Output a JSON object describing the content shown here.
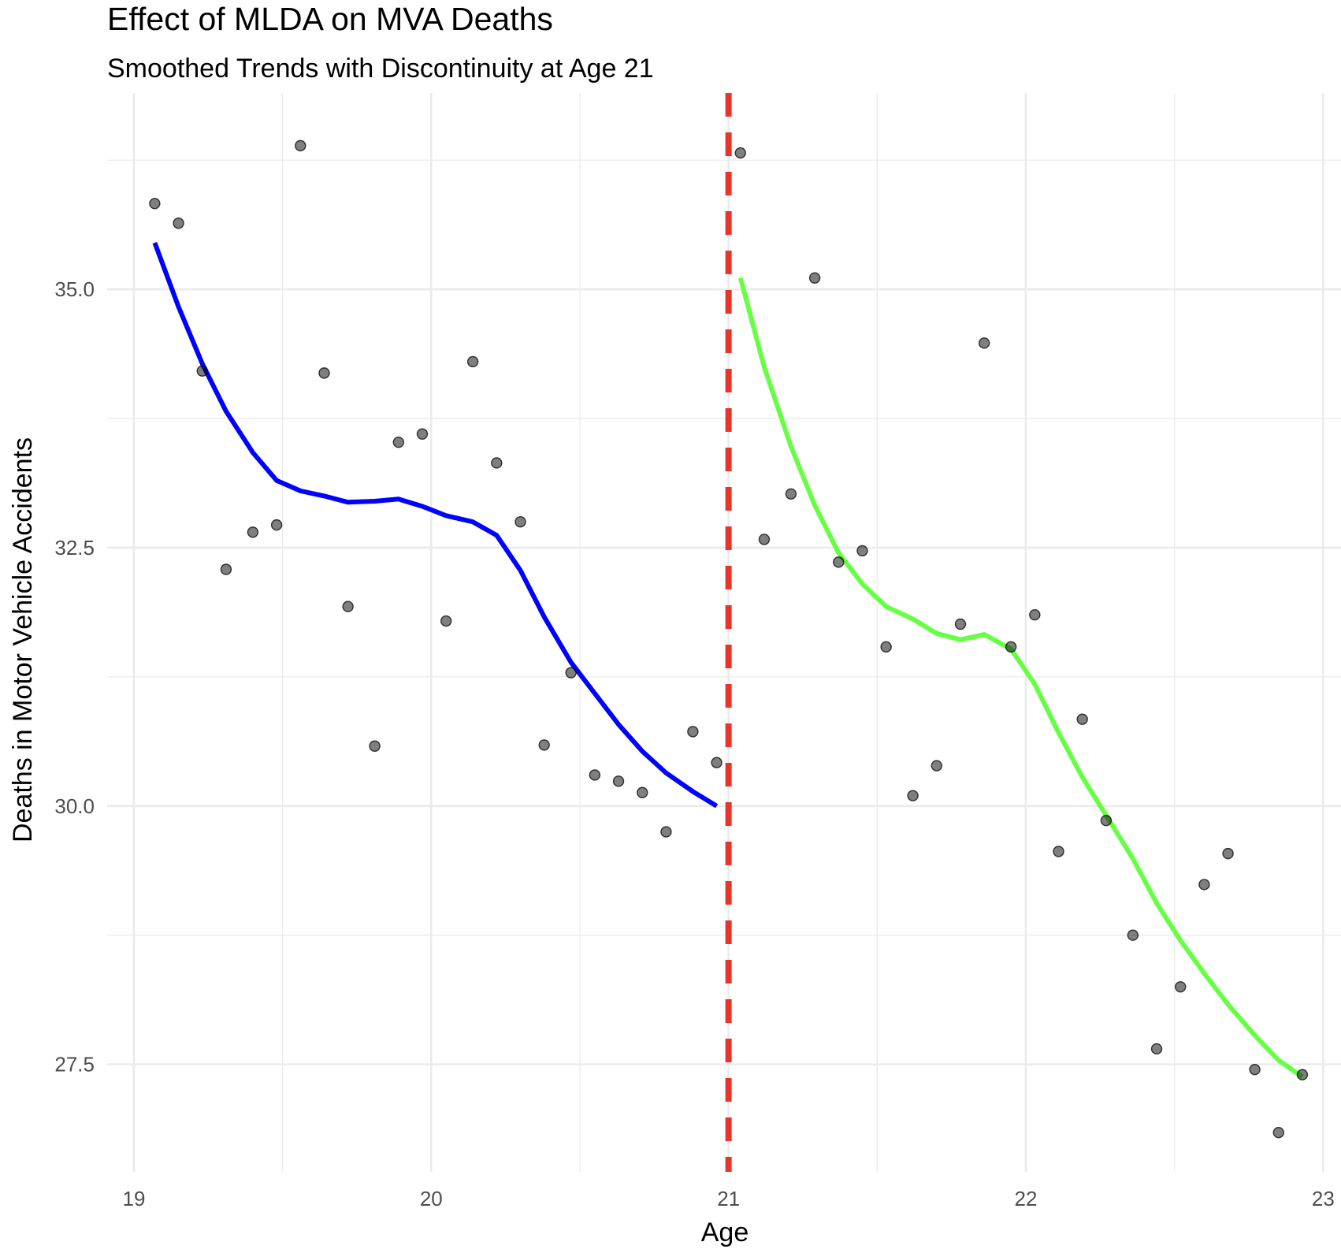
{
  "chart_data": {
    "type": "scatter",
    "title": "Effect of MLDA on MVA Deaths",
    "subtitle": "Smoothed Trends with Discontinuity at Age 21",
    "xlabel": "Age",
    "ylabel": "Deaths in Motor Vehicle Accidents",
    "xlim": [
      18.91,
      23.06
    ],
    "ylim": [
      26.46,
      36.9
    ],
    "x_ticks": [
      19,
      20,
      21,
      22,
      23
    ],
    "x_tick_labels": [
      "19",
      "20",
      "21",
      "22",
      "23"
    ],
    "y_ticks": [
      27.5,
      30.0,
      32.5,
      35.0
    ],
    "y_tick_labels": [
      "27.5",
      "30.0",
      "32.5",
      "35.0"
    ],
    "grid": true,
    "cutoff": {
      "x": 21,
      "color": "#e8352b",
      "style": "dashed"
    },
    "series": [
      {
        "kind": "points",
        "color": "#000000",
        "points": [
          [
            19.07,
            35.83
          ],
          [
            19.15,
            35.64
          ],
          [
            19.23,
            34.21
          ],
          [
            19.31,
            32.29
          ],
          [
            19.4,
            32.65
          ],
          [
            19.48,
            32.72
          ],
          [
            19.56,
            36.39
          ],
          [
            19.64,
            34.19
          ],
          [
            19.72,
            31.93
          ],
          [
            19.81,
            30.58
          ],
          [
            19.89,
            33.52
          ],
          [
            19.97,
            33.6
          ],
          [
            20.05,
            31.79
          ],
          [
            20.14,
            34.3
          ],
          [
            20.22,
            33.32
          ],
          [
            20.3,
            32.75
          ],
          [
            20.38,
            30.59
          ],
          [
            20.47,
            31.29
          ],
          [
            20.55,
            30.3
          ],
          [
            20.63,
            30.24
          ],
          [
            20.71,
            30.13
          ],
          [
            20.79,
            29.75
          ],
          [
            20.88,
            30.72
          ],
          [
            20.96,
            30.42
          ],
          [
            21.04,
            36.32
          ],
          [
            21.12,
            32.58
          ],
          [
            21.21,
            33.02
          ],
          [
            21.29,
            35.11
          ],
          [
            21.37,
            32.36
          ],
          [
            21.45,
            32.47
          ],
          [
            21.53,
            31.54
          ],
          [
            21.62,
            30.1
          ],
          [
            21.7,
            30.39
          ],
          [
            21.78,
            31.76
          ],
          [
            21.86,
            34.48
          ],
          [
            21.95,
            31.54
          ],
          [
            22.03,
            31.85
          ],
          [
            22.11,
            29.56
          ],
          [
            22.19,
            30.84
          ],
          [
            22.27,
            29.86
          ],
          [
            22.36,
            28.75
          ],
          [
            22.44,
            27.65
          ],
          [
            22.52,
            28.25
          ],
          [
            22.6,
            29.24
          ],
          [
            22.68,
            29.54
          ],
          [
            22.77,
            27.45
          ],
          [
            22.85,
            26.84
          ],
          [
            22.93,
            27.4
          ]
        ]
      },
      {
        "kind": "smooth",
        "color": "#0000ff",
        "points": [
          [
            19.07,
            35.45
          ],
          [
            19.15,
            34.83
          ],
          [
            19.23,
            34.28
          ],
          [
            19.31,
            33.82
          ],
          [
            19.4,
            33.42
          ],
          [
            19.48,
            33.15
          ],
          [
            19.56,
            33.05
          ],
          [
            19.64,
            33.0
          ],
          [
            19.72,
            32.94
          ],
          [
            19.81,
            32.95
          ],
          [
            19.89,
            32.97
          ],
          [
            19.97,
            32.9
          ],
          [
            20.05,
            32.81
          ],
          [
            20.14,
            32.75
          ],
          [
            20.22,
            32.62
          ],
          [
            20.3,
            32.28
          ],
          [
            20.38,
            31.83
          ],
          [
            20.47,
            31.39
          ],
          [
            20.55,
            31.09
          ],
          [
            20.63,
            30.79
          ],
          [
            20.71,
            30.53
          ],
          [
            20.79,
            30.32
          ],
          [
            20.88,
            30.14
          ],
          [
            20.96,
            30.0
          ]
        ]
      },
      {
        "kind": "smooth",
        "color": "#66ff44",
        "points": [
          [
            21.04,
            35.11
          ],
          [
            21.12,
            34.25
          ],
          [
            21.21,
            33.48
          ],
          [
            21.29,
            32.91
          ],
          [
            21.37,
            32.45
          ],
          [
            21.45,
            32.15
          ],
          [
            21.53,
            31.93
          ],
          [
            21.62,
            31.81
          ],
          [
            21.7,
            31.67
          ],
          [
            21.78,
            31.61
          ],
          [
            21.86,
            31.66
          ],
          [
            21.95,
            31.52
          ],
          [
            22.03,
            31.18
          ],
          [
            22.11,
            30.71
          ],
          [
            22.19,
            30.28
          ],
          [
            22.27,
            29.91
          ],
          [
            22.36,
            29.49
          ],
          [
            22.44,
            29.06
          ],
          [
            22.52,
            28.7
          ],
          [
            22.6,
            28.38
          ],
          [
            22.68,
            28.08
          ],
          [
            22.77,
            27.78
          ],
          [
            22.85,
            27.54
          ],
          [
            22.93,
            27.38
          ]
        ]
      }
    ]
  }
}
